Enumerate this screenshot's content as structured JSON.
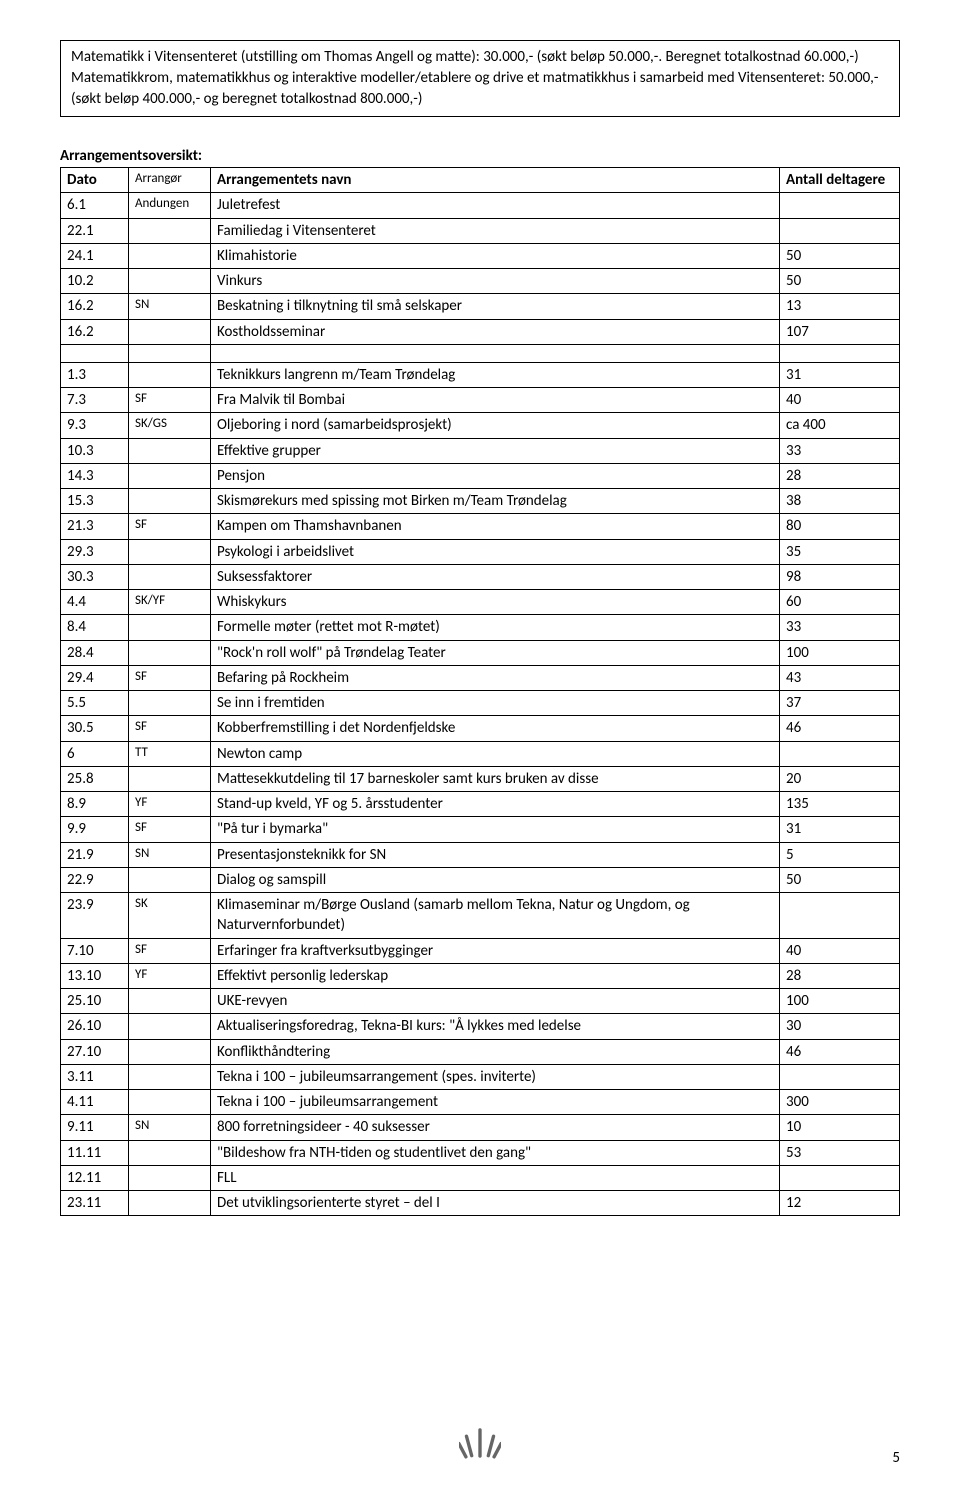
{
  "info_box": {
    "line1": "Matematikk i Vitensenteret (utstilling om Thomas Angell og matte):  30.000,- (søkt beløp 50.000,-. Beregnet totalkostnad 60.000,-)",
    "line2": "Matematikkrom, matematikkhus og interaktive modeller/etablere og drive et matmatikkhus i samarbeid med Vitensenteret:  50.000,- (søkt beløp 400.000,- og beregnet totalkostnad 800.000,-)"
  },
  "section_title": "Arrangementsoversikt:",
  "headers": {
    "dato": "Dato",
    "arrangor": "Arrangør",
    "navn": "Arrangementets navn",
    "antall": "Antall deltagere"
  },
  "rows": [
    {
      "dato": "6.1",
      "arrangor": "Andungen",
      "navn": "Juletrefest",
      "antall": ""
    },
    {
      "dato": "22.1",
      "arrangor": "",
      "navn": "Familiedag i Vitensenteret",
      "antall": ""
    },
    {
      "dato": "24.1",
      "arrangor": "",
      "navn": "Klimahistorie",
      "antall": "50"
    },
    {
      "dato": "10.2",
      "arrangor": "",
      "navn": "Vinkurs",
      "antall": "50"
    },
    {
      "dato": "16.2",
      "arrangor": "SN",
      "navn": "Beskatning i tilknytning til små selskaper",
      "antall": "13"
    },
    {
      "dato": "16.2",
      "arrangor": "",
      "navn": "Kostholdsseminar",
      "antall": "107"
    }
  ],
  "rows2": [
    {
      "dato": "1.3",
      "arrangor": "",
      "navn": "Teknikkurs langrenn m/Team Trøndelag",
      "antall": "31"
    },
    {
      "dato": "7.3",
      "arrangor": "SF",
      "navn": "Fra Malvik til Bombai",
      "antall": "40"
    },
    {
      "dato": "9.3",
      "arrangor": "SK/GS",
      "navn": "Oljeboring i nord  (samarbeidsprosjekt)",
      "antall": "ca 400"
    },
    {
      "dato": "10.3",
      "arrangor": "",
      "navn": "Effektive grupper",
      "antall": "33"
    },
    {
      "dato": "14.3",
      "arrangor": "",
      "navn": "Pensjon",
      "antall": "28"
    },
    {
      "dato": "15.3",
      "arrangor": "",
      "navn": "Skismørekurs med spissing mot Birken m/Team Trøndelag",
      "antall": "38"
    },
    {
      "dato": "21.3",
      "arrangor": "SF",
      "navn": "Kampen om Thamshavnbanen",
      "antall": "80"
    },
    {
      "dato": "29.3",
      "arrangor": "",
      "navn": "Psykologi i arbeidslivet",
      "antall": "35"
    },
    {
      "dato": "30.3",
      "arrangor": "",
      "navn": "Suksessfaktorer",
      "antall": "98"
    },
    {
      "dato": "4.4",
      "arrangor": "SK/YF",
      "navn": "Whiskykurs",
      "antall": "60"
    },
    {
      "dato": "8.4",
      "arrangor": "",
      "navn": "Formelle møter (rettet mot R-møtet)",
      "antall": "33"
    },
    {
      "dato": "28.4",
      "arrangor": "",
      "navn": "\"Rock'n roll wolf\" på Trøndelag Teater",
      "antall": "100"
    },
    {
      "dato": "29.4",
      "arrangor": "SF",
      "navn": "Befaring på Rockheim",
      "antall": "43"
    },
    {
      "dato": "5.5",
      "arrangor": "",
      "navn": "Se inn i fremtiden",
      "antall": "37"
    },
    {
      "dato": "30.5",
      "arrangor": "SF",
      "navn": "Kobberfremstilling i det Nordenfjeldske",
      "antall": "46"
    },
    {
      "dato": "6",
      "arrangor": "TT",
      "navn": "Newton camp",
      "antall": ""
    },
    {
      "dato": "25.8",
      "arrangor": "",
      "navn": "Mattesekkutdeling til 17 barneskoler samt kurs bruken av disse",
      "antall": "20"
    },
    {
      "dato": "8.9",
      "arrangor": "YF",
      "navn": "Stand-up kveld, YF og 5. årsstudenter",
      "antall": "135"
    },
    {
      "dato": "9.9",
      "arrangor": "SF",
      "navn": "\"På tur i bymarka\"",
      "antall": "31"
    },
    {
      "dato": "21.9",
      "arrangor": "SN",
      "navn": "Presentasjonsteknikk for SN",
      "antall": "5"
    },
    {
      "dato": "22.9",
      "arrangor": "",
      "navn": "Dialog og samspill",
      "antall": "50"
    },
    {
      "dato": "23.9",
      "arrangor": "SK",
      "navn": "Klimaseminar m/Børge Ousland  (samarb mellom Tekna,  Natur og Ungdom,  og Naturvernforbundet)",
      "antall": ""
    },
    {
      "dato": "7.10",
      "arrangor": "SF",
      "navn": "Erfaringer fra kraftverksutbygginger",
      "antall": "40"
    },
    {
      "dato": "13.10",
      "arrangor": "YF",
      "navn": "Effektivt personlig lederskap",
      "antall": "28"
    },
    {
      "dato": "25.10",
      "arrangor": "",
      "navn": "UKE-revyen",
      "antall": "100"
    },
    {
      "dato": "26.10",
      "arrangor": "",
      "navn": "Aktualiseringsforedrag, Tekna-BI kurs: \"Å lykkes med ledelse",
      "antall": "30"
    },
    {
      "dato": "27.10",
      "arrangor": "",
      "navn": "Konflikthåndtering",
      "antall": "46"
    },
    {
      "dato": "3.11",
      "arrangor": "",
      "navn": "Tekna i 100 – jubileumsarrangement (spes. inviterte)",
      "antall": ""
    },
    {
      "dato": "4.11",
      "arrangor": "",
      "navn": "Tekna i 100 – jubileumsarrangement",
      "antall": "300"
    },
    {
      "dato": "9.11",
      "arrangor": "SN",
      "navn": "800 forretningsideer - 40 suksesser",
      "antall": "10"
    },
    {
      "dato": "11.11",
      "arrangor": "",
      "navn": "\"Bildeshow fra NTH-tiden og studentlivet den gang\"",
      "antall": "53"
    },
    {
      "dato": "12.11",
      "arrangor": "",
      "navn": "FLL",
      "antall": ""
    },
    {
      "dato": "23.11",
      "arrangor": "",
      "navn": "Det utviklingsorienterte styret – del I",
      "antall": "12"
    }
  ],
  "page_number": "5"
}
